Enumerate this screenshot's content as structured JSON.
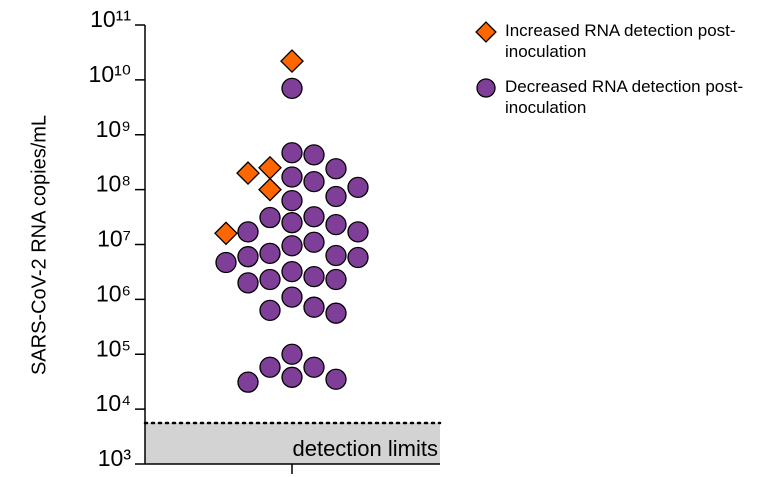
{
  "chart_data": {
    "type": "swarm",
    "y_label": "SARS-CoV-2 RNA copies/mL",
    "y_scale": "log",
    "ylim": [
      1000,
      100000000000
    ],
    "yticks": [
      {
        "value": 1000,
        "label": "10³"
      },
      {
        "value": 10000,
        "label": "10⁴"
      },
      {
        "value": 100000,
        "label": "10⁵"
      },
      {
        "value": 1000000,
        "label": "10⁶"
      },
      {
        "value": 10000000,
        "label": "10⁷"
      },
      {
        "value": 100000000,
        "label": "10⁸"
      },
      {
        "value": 1000000000,
        "label": "10⁹"
      },
      {
        "value": 10000000000,
        "label": "10¹⁰"
      },
      {
        "value": 100000000000,
        "label": "10¹¹"
      }
    ],
    "detection_limit": 5600,
    "detection_label": "detection limits",
    "series": [
      {
        "name": "Decreased RNA detection post-inoculation",
        "color": "#7f3f98",
        "marker": "circle",
        "values": [
          7000000000,
          430000000,
          470000000,
          240000000,
          140000000,
          110000000,
          170000000,
          75000000,
          63000000,
          32000000,
          31000000,
          25000000,
          23000000,
          17000000,
          17000000,
          11000000,
          9500000,
          6000000,
          6300000,
          6900000,
          5800000,
          4700000,
          3200000,
          2300000,
          2600000,
          2300000,
          2000000,
          1100000,
          560000,
          630000,
          720000,
          100000,
          58000,
          58000,
          35000,
          38000,
          31000
        ]
      },
      {
        "name": "Increased RNA detection post-inoculation",
        "color": "#ff6600",
        "marker": "diamond",
        "values": [
          22000000000,
          250000000,
          200000000,
          100000000,
          16000000
        ]
      }
    ]
  }
}
